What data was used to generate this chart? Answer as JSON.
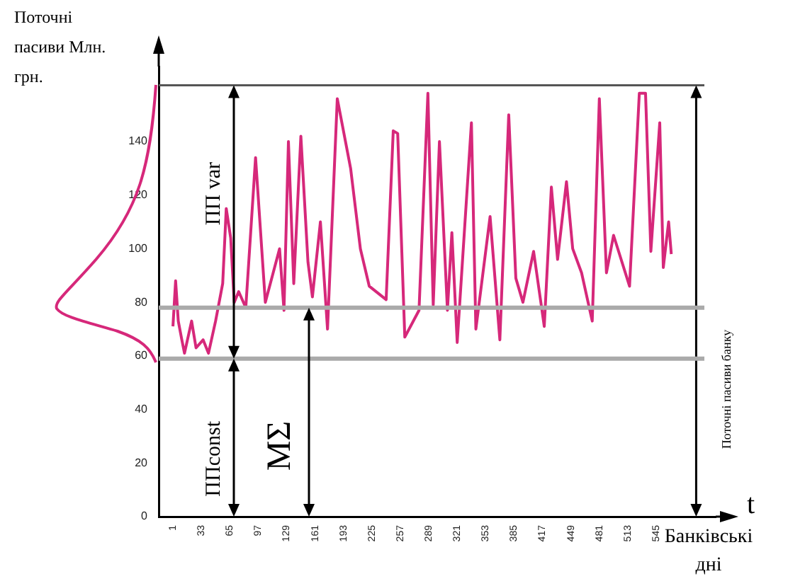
{
  "chart_data": {
    "type": "line",
    "ylabel": "Поточні пасиви Млн. грн.",
    "xlabel": "Банківські дні",
    "x": [
      1,
      4,
      7,
      11,
      14,
      22,
      27,
      35,
      41,
      49,
      57,
      61,
      66,
      70,
      75,
      83,
      94,
      105,
      121,
      126,
      131,
      137,
      145,
      153,
      158,
      167,
      175,
      186,
      201,
      212,
      222,
      241,
      249,
      254,
      262,
      278,
      288,
      294,
      301,
      310,
      315,
      321,
      337,
      342,
      358,
      369,
      379,
      387,
      395,
      407,
      419,
      427,
      434,
      444,
      451,
      461,
      473,
      481,
      489,
      497,
      515,
      526,
      533,
      539,
      549,
      553,
      559,
      562
    ],
    "series": [
      {
        "color": "#d6287a",
        "values": [
          71,
          88,
          73,
          66,
          61,
          73,
          63,
          66,
          61,
          73,
          87,
          115,
          104,
          80,
          84,
          78,
          134,
          80,
          100,
          77,
          140,
          87,
          142,
          95,
          82,
          110,
          70,
          156,
          130,
          100,
          86,
          81,
          144,
          143,
          67,
          77,
          158,
          79,
          140,
          77,
          106,
          65,
          147,
          70,
          112,
          66,
          150,
          89,
          80,
          99,
          71,
          123,
          96,
          125,
          100,
          91,
          73,
          156,
          91,
          105,
          86,
          158,
          158,
          99,
          147,
          93,
          110,
          98
        ]
      }
    ],
    "xlim": [
      -15,
      612
    ],
    "ylim": [
      0,
      168
    ],
    "xticks": [
      1,
      33,
      65,
      97,
      129,
      161,
      193,
      225,
      257,
      289,
      321,
      353,
      385,
      417,
      449,
      481,
      513,
      545
    ],
    "yticks": [
      0,
      20,
      40,
      60,
      80,
      100,
      120,
      140
    ],
    "grid": false,
    "legend": false,
    "marker": "none",
    "line_style": "solid",
    "ref_lines": [
      {
        "axis": "x",
        "value": 590,
        "color": "#000000"
      },
      {
        "axis": "y",
        "value": 161,
        "color": "#555555"
      },
      {
        "axis": "y",
        "value": 78,
        "color": "#aaaaaa"
      },
      {
        "axis": "y",
        "value": 59,
        "color": "#aaaaaa"
      }
    ],
    "annotations": [
      "ПП var",
      "ППconst",
      "MΣ",
      "Поточні пасиви банку",
      "t"
    ]
  }
}
